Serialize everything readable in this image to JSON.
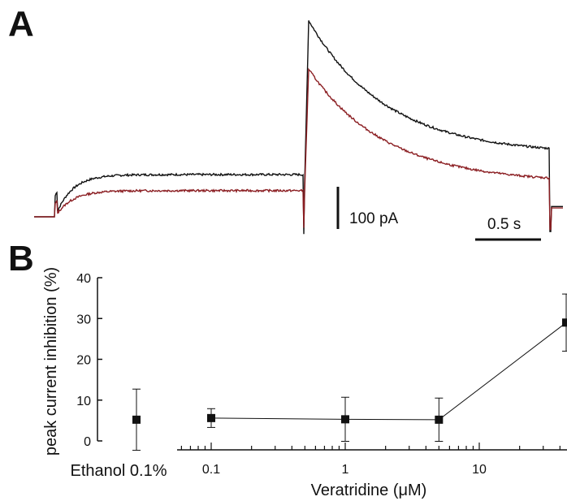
{
  "panels": {
    "a_label": "A",
    "b_label": "B"
  },
  "colors": {
    "control": "#111111",
    "treated": "#8b1e22",
    "axis": "#111111"
  },
  "chart_data": [
    {
      "type": "line",
      "panel": "A",
      "description_of_content": "",
      "series": [
        {
          "color": "#111111",
          "phases": {
            "baseline": 0,
            "plateau": 100,
            "peak": 465,
            "tail_end": 148,
            "after": 35
          }
        },
        {
          "color": "#8b1e22",
          "phases": {
            "baseline": 0,
            "plateau": 62,
            "peak": 350,
            "tail_end": 80,
            "after": 30
          }
        }
      ],
      "scale_bars": {
        "current_label": "100 pA",
        "current_value_pA": 100,
        "time_label": "0.5 s",
        "time_value_s": 0.5
      }
    },
    {
      "type": "scatter",
      "panel": "B",
      "ylabel": "peak current inhibition (%)",
      "xlabel": "Veratridine (μM)",
      "xscale": "log",
      "xlim": [
        0.04,
        50
      ],
      "ylim": [
        0,
        40
      ],
      "yticks": [
        0,
        10,
        20,
        30,
        40
      ],
      "xticks": [
        {
          "value": 0.1,
          "label": "0.1"
        },
        {
          "value": 1,
          "label": "1"
        },
        {
          "value": 10,
          "label": "10"
        }
      ],
      "control": {
        "label": "Ethanol 0.1%",
        "y": 5.2,
        "err": 7.5
      },
      "points": [
        {
          "x": 0.1,
          "y": 5.6,
          "err": 2.3
        },
        {
          "x": 1,
          "y": 5.3,
          "err": 5.4
        },
        {
          "x": 5,
          "y": 5.2,
          "err": 5.3
        },
        {
          "x": 50,
          "y": 29,
          "err": 7
        }
      ]
    }
  ]
}
